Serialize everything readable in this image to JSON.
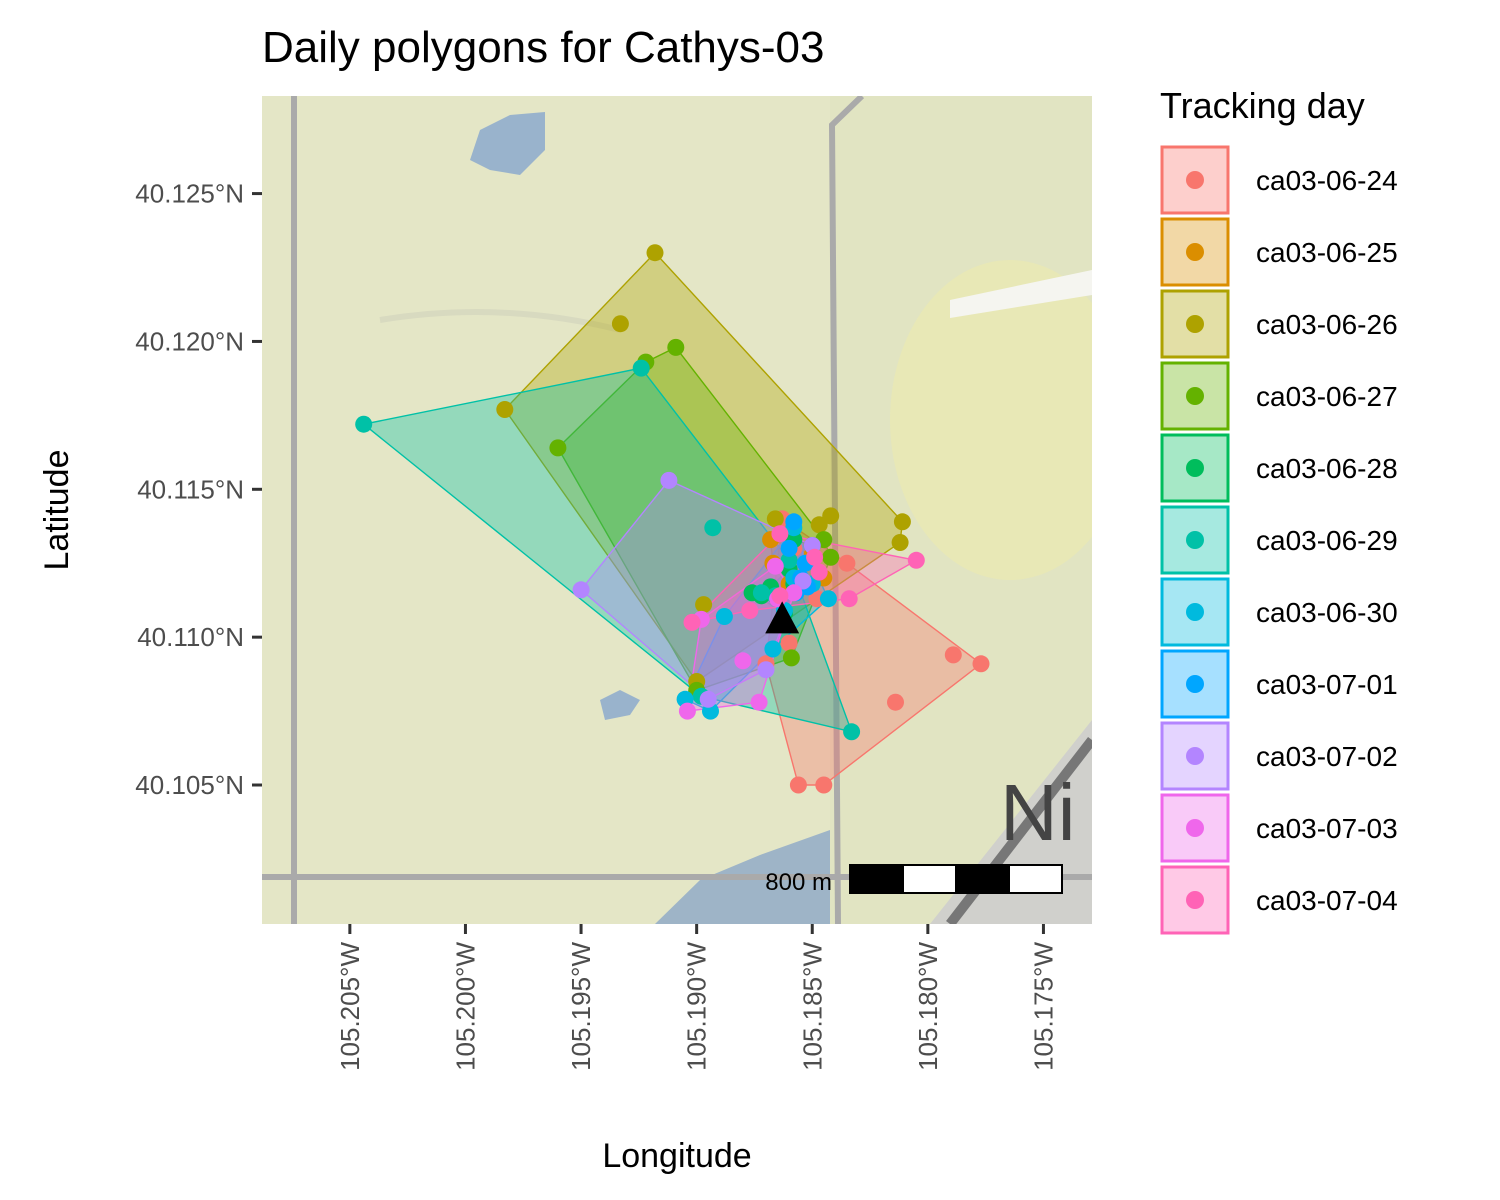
{
  "chart_data": {
    "type": "scatter",
    "title": "Daily polygons for Cathys-03",
    "xlabel": "Longitude",
    "ylabel": "Latitude",
    "xlim": [
      -105.2088,
      -105.1729
    ],
    "ylim": [
      40.1003,
      40.1283
    ],
    "x_ticks": [
      {
        "value": -105.205,
        "label": "105.205°W"
      },
      {
        "value": -105.2,
        "label": "105.200°W"
      },
      {
        "value": -105.195,
        "label": "105.195°W"
      },
      {
        "value": -105.19,
        "label": "105.190°W"
      },
      {
        "value": -105.185,
        "label": "105.185°W"
      },
      {
        "value": -105.18,
        "label": "105.180°W"
      },
      {
        "value": -105.175,
        "label": "105.175°W"
      }
    ],
    "y_ticks": [
      {
        "value": 40.125,
        "label": "40.125°N"
      },
      {
        "value": 40.12,
        "label": "40.120°N"
      },
      {
        "value": 40.115,
        "label": "40.115°N"
      },
      {
        "value": 40.11,
        "label": "40.110°N"
      },
      {
        "value": 40.105,
        "label": "40.105°N"
      }
    ],
    "legend": {
      "title": "Tracking day",
      "position": "right"
    },
    "grid": false,
    "basemap": true,
    "scale_bar": {
      "label": "800 m",
      "position": "bottom-right"
    },
    "center_marker": {
      "shape": "triangle",
      "color": "#000000",
      "x": -105.1863,
      "y": 40.1106
    },
    "series": [
      {
        "name": "ca03-06-24",
        "color": "#F8766D",
        "points": [
          [
            -105.1789,
            40.1094
          ],
          [
            -105.1777,
            40.1091
          ],
          [
            -105.1814,
            40.1078
          ],
          [
            -105.187,
            40.1091
          ],
          [
            -105.1845,
            40.105
          ],
          [
            -105.1856,
            40.105
          ],
          [
            -105.1858,
            40.113
          ],
          [
            -105.1863,
            40.114
          ],
          [
            -105.1855,
            40.112
          ],
          [
            -105.1848,
            40.1113
          ],
          [
            -105.186,
            40.1098
          ],
          [
            -105.1835,
            40.1125
          ]
        ],
        "hull": [
          [
            -105.1777,
            40.1091
          ],
          [
            -105.1845,
            40.105
          ],
          [
            -105.1856,
            40.105
          ],
          [
            -105.187,
            40.1091
          ],
          [
            -105.1863,
            40.114
          ],
          [
            -105.1835,
            40.1125
          ]
        ]
      },
      {
        "name": "ca03-06-25",
        "color": "#DB8E00",
        "points": [
          [
            -105.1867,
            40.1125
          ],
          [
            -105.186,
            40.1118
          ],
          [
            -105.185,
            40.1128
          ],
          [
            -105.1845,
            40.112
          ],
          [
            -105.1868,
            40.1133
          ]
        ],
        "hull": [
          [
            -105.1867,
            40.1125
          ],
          [
            -105.186,
            40.1118
          ],
          [
            -105.1845,
            40.112
          ],
          [
            -105.185,
            40.1128
          ],
          [
            -105.1868,
            40.1133
          ]
        ]
      },
      {
        "name": "ca03-06-26",
        "color": "#AEA200",
        "points": [
          [
            -105.1918,
            40.123
          ],
          [
            -105.1933,
            40.1206
          ],
          [
            -105.1983,
            40.1177
          ],
          [
            -105.1811,
            40.1139
          ],
          [
            -105.1812,
            40.1132
          ],
          [
            -105.1842,
            40.1141
          ],
          [
            -105.1847,
            40.1138
          ],
          [
            -105.1866,
            40.114
          ],
          [
            -105.19,
            40.1085
          ],
          [
            -105.1897,
            40.1111
          ]
        ],
        "hull": [
          [
            -105.1918,
            40.123
          ],
          [
            -105.1983,
            40.1177
          ],
          [
            -105.19,
            40.1085
          ],
          [
            -105.1812,
            40.1132
          ],
          [
            -105.1811,
            40.1139
          ]
        ]
      },
      {
        "name": "ca03-06-27",
        "color": "#64B200",
        "points": [
          [
            -105.1909,
            40.1198
          ],
          [
            -105.1922,
            40.1193
          ],
          [
            -105.196,
            40.1164
          ],
          [
            -105.1842,
            40.1127
          ],
          [
            -105.1845,
            40.1133
          ],
          [
            -105.1859,
            40.1093
          ],
          [
            -105.19,
            40.1082
          ]
        ],
        "hull": [
          [
            -105.1909,
            40.1198
          ],
          [
            -105.1922,
            40.1193
          ],
          [
            -105.196,
            40.1164
          ],
          [
            -105.19,
            40.1082
          ],
          [
            -105.1859,
            40.1093
          ],
          [
            -105.1842,
            40.1127
          ],
          [
            -105.1845,
            40.1133
          ]
        ]
      },
      {
        "name": "ca03-06-28",
        "color": "#00BD5C",
        "points": [
          [
            -105.1858,
            40.1133
          ],
          [
            -105.185,
            40.1131
          ],
          [
            -105.186,
            40.1123
          ],
          [
            -105.1868,
            40.1117
          ],
          [
            -105.1872,
            40.1114
          ],
          [
            -105.1876,
            40.1115
          ],
          [
            -105.1862,
            40.1108
          ],
          [
            -105.1858,
            40.1118
          ]
        ],
        "hull": [
          [
            -105.1858,
            40.1133
          ],
          [
            -105.185,
            40.1131
          ],
          [
            -105.1858,
            40.1118
          ],
          [
            -105.1862,
            40.1108
          ],
          [
            -105.1876,
            40.1115
          ],
          [
            -105.1868,
            40.1117
          ],
          [
            -105.186,
            40.1123
          ]
        ]
      },
      {
        "name": "ca03-06-29",
        "color": "#00C1A7",
        "points": [
          [
            -105.2044,
            40.1172
          ],
          [
            -105.1924,
            40.1191
          ],
          [
            -105.1833,
            40.1068
          ],
          [
            -105.1898,
            40.108
          ],
          [
            -105.1893,
            40.1137
          ],
          [
            -105.1872,
            40.1115
          ],
          [
            -105.1866,
            40.1114
          ],
          [
            -105.186,
            40.1126
          ]
        ],
        "hull": [
          [
            -105.2044,
            40.1172
          ],
          [
            -105.1924,
            40.1191
          ],
          [
            -105.186,
            40.1126
          ],
          [
            -105.1833,
            40.1068
          ],
          [
            -105.1898,
            40.108
          ]
        ]
      },
      {
        "name": "ca03-06-30",
        "color": "#00BADE",
        "points": [
          [
            -105.1905,
            40.1079
          ],
          [
            -105.1894,
            40.1075
          ],
          [
            -105.1888,
            40.1107
          ],
          [
            -105.1867,
            40.1096
          ],
          [
            -105.1862,
            40.1109
          ],
          [
            -105.1858,
            40.112
          ],
          [
            -105.1858,
            40.1137
          ],
          [
            -105.185,
            40.1118
          ],
          [
            -105.1843,
            40.1113
          ]
        ],
        "hull": [
          [
            -105.1905,
            40.1079
          ],
          [
            -105.1894,
            40.1075
          ],
          [
            -105.1867,
            40.1096
          ],
          [
            -105.1843,
            40.1113
          ],
          [
            -105.1858,
            40.1137
          ],
          [
            -105.1888,
            40.1107
          ]
        ]
      },
      {
        "name": "ca03-07-01",
        "color": "#00A6FF",
        "points": [
          [
            -105.1858,
            40.1139
          ],
          [
            -105.186,
            40.113
          ],
          [
            -105.1853,
            40.1125
          ],
          [
            -105.1855,
            40.112
          ],
          [
            -105.1857,
            40.1115
          ],
          [
            -105.1852,
            40.1117
          ]
        ],
        "hull": [
          [
            -105.1858,
            40.1139
          ],
          [
            -105.1853,
            40.1125
          ],
          [
            -105.1852,
            40.1117
          ],
          [
            -105.1857,
            40.1115
          ],
          [
            -105.186,
            40.113
          ]
        ]
      },
      {
        "name": "ca03-07-02",
        "color": "#B385FF",
        "points": [
          [
            -105.1912,
            40.1153
          ],
          [
            -105.195,
            40.1116
          ],
          [
            -105.187,
            40.1089
          ],
          [
            -105.1895,
            40.1079
          ],
          [
            -105.185,
            40.1131
          ],
          [
            -105.1854,
            40.1119
          ]
        ],
        "hull": [
          [
            -105.1912,
            40.1153
          ],
          [
            -105.195,
            40.1116
          ],
          [
            -105.1895,
            40.1079
          ],
          [
            -105.187,
            40.1089
          ],
          [
            -105.185,
            40.1131
          ]
        ]
      },
      {
        "name": "ca03-07-03",
        "color": "#EF67EB",
        "points": [
          [
            -105.1898,
            40.1106
          ],
          [
            -105.188,
            40.1092
          ],
          [
            -105.1873,
            40.1078
          ],
          [
            -105.1904,
            40.1075
          ],
          [
            -105.1866,
            40.1124
          ],
          [
            -105.1865,
            40.1113
          ],
          [
            -105.1858,
            40.1115
          ]
        ],
        "hull": [
          [
            -105.1898,
            40.1106
          ],
          [
            -105.1904,
            40.1075
          ],
          [
            -105.1873,
            40.1078
          ],
          [
            -105.1858,
            40.1115
          ],
          [
            -105.1866,
            40.1124
          ]
        ]
      },
      {
        "name": "ca03-07-04",
        "color": "#FF63B6",
        "points": [
          [
            -105.1864,
            40.1135
          ],
          [
            -105.1849,
            40.1127
          ],
          [
            -105.1847,
            40.1122
          ],
          [
            -105.1834,
            40.1113
          ],
          [
            -105.1805,
            40.1126
          ],
          [
            -105.1877,
            40.1109
          ],
          [
            -105.1864,
            40.1114
          ],
          [
            -105.1902,
            40.1105
          ]
        ],
        "hull": [
          [
            -105.1864,
            40.1135
          ],
          [
            -105.1805,
            40.1126
          ],
          [
            -105.1834,
            40.1113
          ],
          [
            -105.1877,
            40.1109
          ],
          [
            -105.1902,
            40.1105
          ]
        ]
      }
    ]
  }
}
